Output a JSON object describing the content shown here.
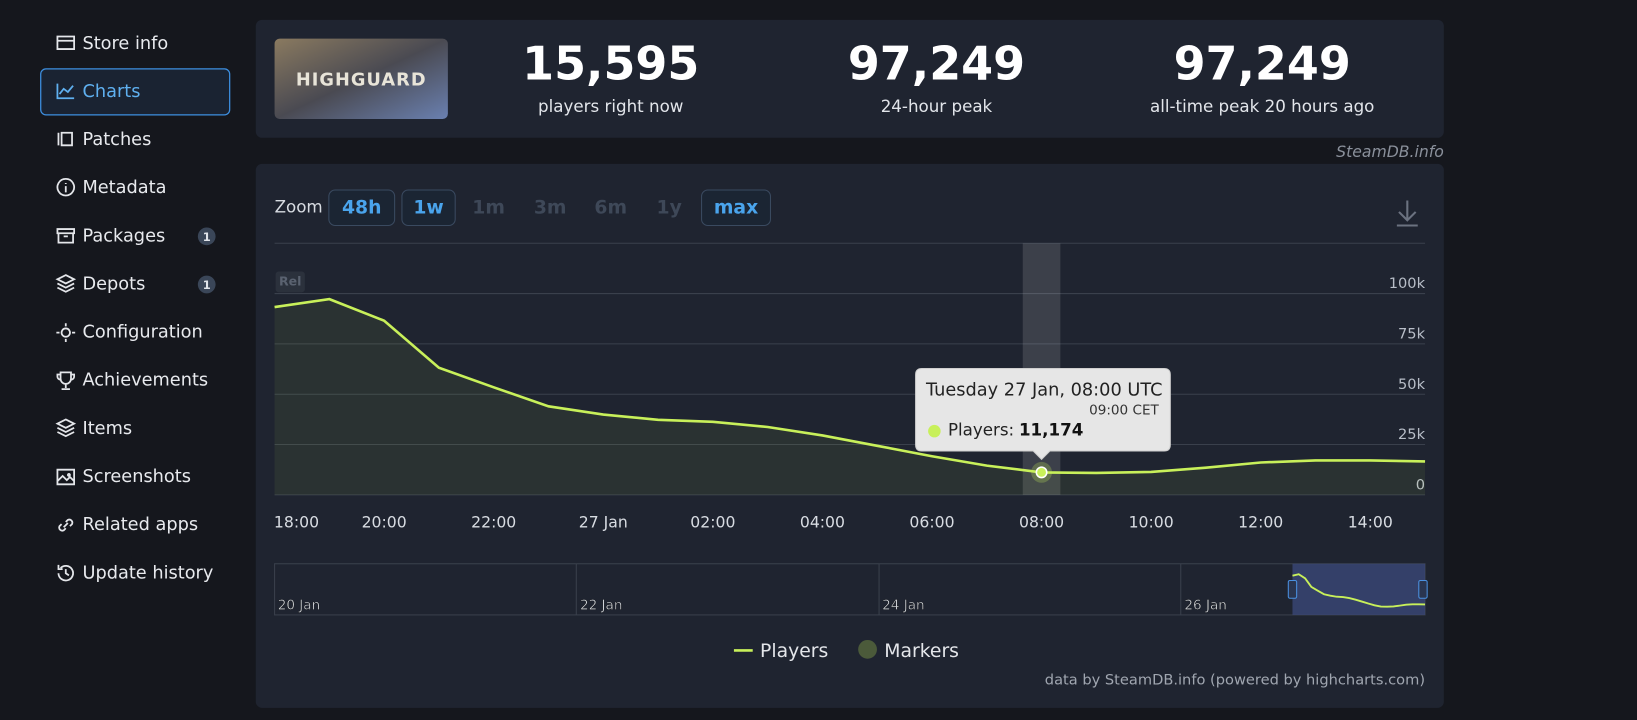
{
  "sidebar": {
    "items": [
      {
        "label": "Store info"
      },
      {
        "label": "Charts"
      },
      {
        "label": "Patches"
      },
      {
        "label": "Metadata"
      },
      {
        "label": "Packages",
        "badge": "1"
      },
      {
        "label": "Depots",
        "badge": "1"
      },
      {
        "label": "Configuration"
      },
      {
        "label": "Achievements"
      },
      {
        "label": "Items"
      },
      {
        "label": "Screenshots"
      },
      {
        "label": "Related apps"
      },
      {
        "label": "Update history"
      }
    ]
  },
  "game_logo": "HIGHGUARD",
  "stats": [
    {
      "value": "15,595",
      "label": "players right now"
    },
    {
      "value": "97,249",
      "label": "24-hour peak"
    },
    {
      "value": "97,249",
      "label": "all-time peak 20 hours ago"
    }
  ],
  "watermark": "SteamDB.info",
  "zoom": {
    "label": "Zoom",
    "buttons": [
      "48h",
      "1w",
      "1m",
      "3m",
      "6m",
      "1y",
      "max"
    ]
  },
  "chart_data": {
    "type": "line",
    "categories": [
      "18:00",
      null,
      "20:00",
      null,
      "22:00",
      null,
      "27 Jan",
      null,
      "02:00",
      null,
      "04:00",
      null,
      "06:00",
      null,
      "08:00",
      null,
      "10:00",
      null,
      "12:00",
      null,
      "14:00",
      null
    ],
    "series": [
      {
        "name": "Players",
        "color": "#c8f05a",
        "values": [
          93300,
          97249,
          86500,
          63200,
          53400,
          44000,
          39900,
          37300,
          36300,
          33700,
          29500,
          24400,
          19200,
          14500,
          11174,
          10900,
          11400,
          13500,
          16100,
          17100,
          17100,
          16600
        ]
      }
    ],
    "ylim": [
      0,
      125000
    ],
    "yticks": [
      {
        "value": 0,
        "label": "0"
      },
      {
        "value": 25000,
        "label": "25k"
      },
      {
        "value": 50000,
        "label": "50k"
      },
      {
        "value": 75000,
        "label": "75k"
      },
      {
        "value": 100000,
        "label": "100k"
      }
    ],
    "grid": true,
    "marker_label": "Rel",
    "markers_legend": "Markers",
    "tooltip": {
      "index": 14,
      "title": "Tuesday 27 Jan, 08:00 UTC",
      "subtitle": "09:00 CET",
      "label": "Players:",
      "value": "11,174"
    },
    "navigator_labels": [
      "20 Jan",
      "22 Jan",
      "24 Jan",
      "26 Jan"
    ],
    "credit": "data by SteamDB.info (powered by highcharts.com)"
  }
}
